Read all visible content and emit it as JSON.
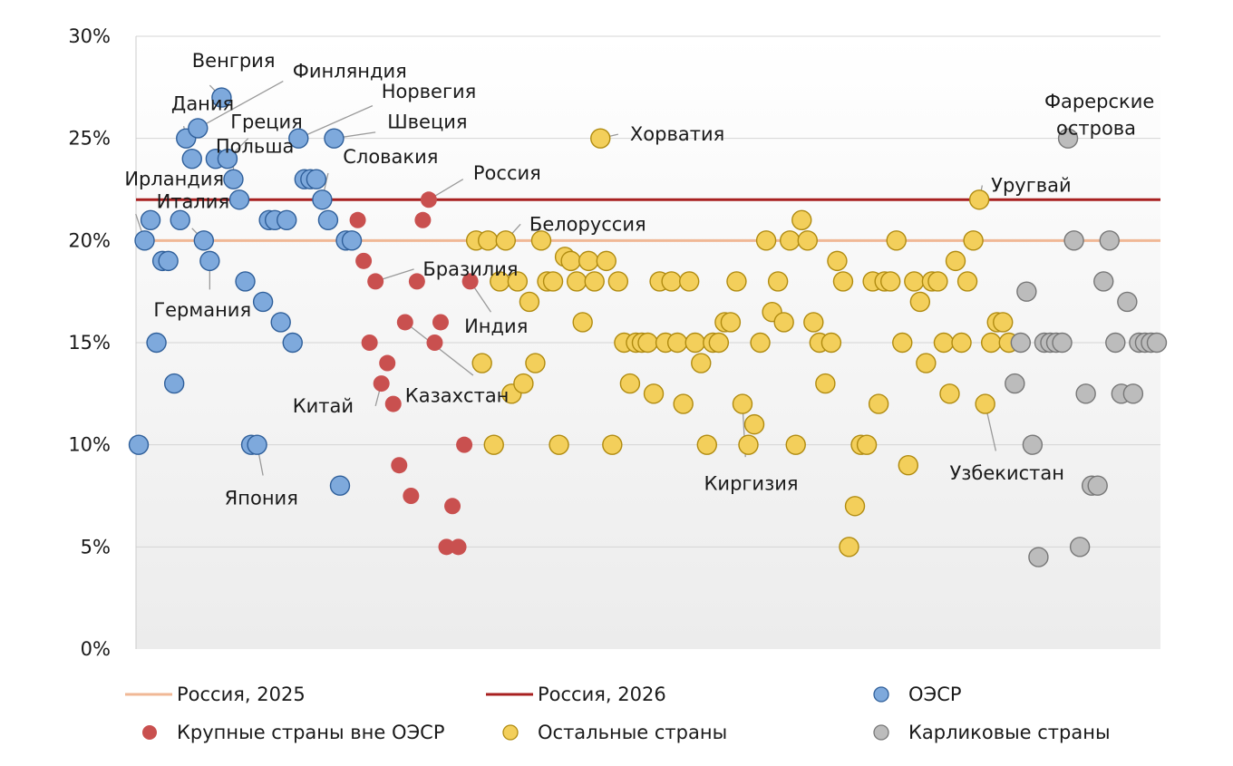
{
  "chart_data": {
    "type": "scatter",
    "ylim": [
      0,
      30
    ],
    "y_ticks": [
      "0%",
      "5%",
      "10%",
      "15%",
      "20%",
      "25%",
      "30%"
    ],
    "grid": true,
    "colors": {
      "oecd": "#7ea9dc",
      "oecd_edge": "#2f5f9a",
      "nonoecd": "#c9504f",
      "other": "#f3cf5b",
      "other_edge": "#b08b10",
      "dwarf": "#bcbcbc",
      "dwarf_edge": "#777777",
      "line2025": "#f0b896",
      "line2026": "#a82020"
    },
    "reference_lines": [
      {
        "name": "Россия, 2025",
        "value": 20
      },
      {
        "name": "Россия, 2026",
        "value": 22
      }
    ],
    "series": [
      {
        "name": "ОЭСР",
        "key": "oecd",
        "points": [
          [
            1,
            10
          ],
          [
            2,
            20
          ],
          [
            3,
            21
          ],
          [
            4,
            15
          ],
          [
            5,
            19
          ],
          [
            6,
            19
          ],
          [
            7,
            13
          ],
          [
            8,
            21
          ],
          [
            9,
            25
          ],
          [
            10,
            24
          ],
          [
            11,
            25.5
          ],
          [
            12,
            20
          ],
          [
            13,
            19
          ],
          [
            14,
            24
          ],
          [
            15,
            27
          ],
          [
            16,
            24
          ],
          [
            17,
            23
          ],
          [
            18,
            22
          ],
          [
            19,
            18
          ],
          [
            20,
            10
          ],
          [
            21,
            10
          ],
          [
            22,
            17
          ],
          [
            23,
            21
          ],
          [
            24,
            21
          ],
          [
            25,
            16
          ],
          [
            26,
            21
          ],
          [
            27,
            15
          ],
          [
            28,
            25
          ],
          [
            29,
            23
          ],
          [
            30,
            23
          ],
          [
            31,
            23
          ],
          [
            32,
            22
          ],
          [
            33,
            21
          ],
          [
            34,
            25
          ],
          [
            35,
            8
          ],
          [
            36,
            20
          ],
          [
            37,
            20
          ]
        ]
      },
      {
        "name": "Крупные страны вне ОЭСР",
        "key": "nonoecd",
        "points": [
          [
            38,
            21
          ],
          [
            39,
            19
          ],
          [
            40,
            15
          ],
          [
            41,
            18
          ],
          [
            42,
            13
          ],
          [
            43,
            14
          ],
          [
            44,
            12
          ],
          [
            45,
            9
          ],
          [
            46,
            16
          ],
          [
            47,
            7.5
          ],
          [
            48,
            18
          ],
          [
            49,
            21
          ],
          [
            50,
            22
          ],
          [
            51,
            15
          ],
          [
            52,
            16
          ],
          [
            53,
            5
          ],
          [
            54,
            7
          ],
          [
            55,
            5
          ],
          [
            56,
            10
          ],
          [
            57,
            18
          ]
        ]
      },
      {
        "name": "Остальные страны",
        "key": "other",
        "points": [
          [
            58,
            20
          ],
          [
            59,
            14
          ],
          [
            60,
            20
          ],
          [
            61,
            10
          ],
          [
            62,
            18
          ],
          [
            63,
            20
          ],
          [
            64,
            12.5
          ],
          [
            65,
            18
          ],
          [
            66,
            13
          ],
          [
            67,
            17
          ],
          [
            68,
            14
          ],
          [
            69,
            20
          ],
          [
            70,
            18
          ],
          [
            71,
            18
          ],
          [
            72,
            10
          ],
          [
            73,
            19.2
          ],
          [
            74,
            19
          ],
          [
            75,
            18
          ],
          [
            76,
            16
          ],
          [
            77,
            19
          ],
          [
            78,
            18
          ],
          [
            79,
            25
          ],
          [
            80,
            19
          ],
          [
            81,
            10
          ],
          [
            82,
            18
          ],
          [
            83,
            15
          ],
          [
            84,
            13
          ],
          [
            85,
            15
          ],
          [
            86,
            15
          ],
          [
            87,
            15
          ],
          [
            88,
            12.5
          ],
          [
            89,
            18
          ],
          [
            90,
            15
          ],
          [
            91,
            18
          ],
          [
            92,
            15
          ],
          [
            93,
            12
          ],
          [
            94,
            18
          ],
          [
            95,
            15
          ],
          [
            96,
            14
          ],
          [
            97,
            10
          ],
          [
            98,
            15
          ],
          [
            99,
            15
          ],
          [
            100,
            16
          ],
          [
            101,
            16
          ],
          [
            102,
            18
          ],
          [
            103,
            12
          ],
          [
            104,
            10
          ],
          [
            105,
            11
          ],
          [
            106,
            15
          ],
          [
            107,
            20
          ],
          [
            108,
            16.5
          ],
          [
            109,
            18
          ],
          [
            110,
            16
          ],
          [
            111,
            20
          ],
          [
            112,
            10
          ],
          [
            113,
            21
          ],
          [
            114,
            20
          ],
          [
            115,
            16
          ],
          [
            116,
            15
          ],
          [
            117,
            13
          ],
          [
            118,
            15
          ],
          [
            119,
            19
          ],
          [
            120,
            18
          ],
          [
            121,
            5
          ],
          [
            122,
            7
          ],
          [
            123,
            10
          ],
          [
            124,
            10
          ],
          [
            125,
            18
          ],
          [
            126,
            12
          ],
          [
            127,
            18
          ],
          [
            128,
            18
          ],
          [
            129,
            20
          ],
          [
            130,
            15
          ],
          [
            131,
            9
          ],
          [
            132,
            18
          ],
          [
            133,
            17
          ],
          [
            134,
            14
          ],
          [
            135,
            18
          ],
          [
            136,
            18
          ],
          [
            137,
            15
          ],
          [
            138,
            12.5
          ],
          [
            139,
            19
          ],
          [
            140,
            15
          ],
          [
            141,
            18
          ],
          [
            142,
            20
          ],
          [
            143,
            22
          ],
          [
            144,
            12
          ],
          [
            145,
            15
          ],
          [
            146,
            16
          ],
          [
            147,
            16
          ],
          [
            148,
            15
          ]
        ]
      },
      {
        "name": "Карликовые страны",
        "key": "dwarf",
        "points": [
          [
            149,
            13
          ],
          [
            150,
            15
          ],
          [
            151,
            17.5
          ],
          [
            152,
            10
          ],
          [
            153,
            4.5
          ],
          [
            154,
            15
          ],
          [
            155,
            15
          ],
          [
            156,
            15
          ],
          [
            157,
            15
          ],
          [
            158,
            25
          ],
          [
            159,
            20
          ],
          [
            160,
            5
          ],
          [
            161,
            12.5
          ],
          [
            162,
            8
          ],
          [
            163,
            8
          ],
          [
            164,
            18
          ],
          [
            165,
            20
          ],
          [
            166,
            15
          ],
          [
            167,
            12.5
          ],
          [
            168,
            17
          ],
          [
            169,
            12.5
          ],
          [
            170,
            15
          ],
          [
            171,
            15
          ],
          [
            172,
            15
          ],
          [
            173,
            15
          ]
        ]
      }
    ],
    "annotations": [
      {
        "text": "Венгрия",
        "i": 15,
        "y": 27,
        "lx": 10,
        "ly": 28.8,
        "tx": 13,
        "ty": 27.6
      },
      {
        "text": "Дания",
        "i": 9,
        "y": 25,
        "lx": 6.5,
        "ly": 26.7,
        "tx": 8.6,
        "ty": 25.6
      },
      {
        "text": "Финляндия",
        "i": 11,
        "y": 25.5,
        "lx": 27,
        "ly": 28.3,
        "tx": 25.4,
        "ty": 27.8
      },
      {
        "text": "Норвегия",
        "i": 28,
        "y": 25,
        "lx": 42,
        "ly": 27.3,
        "tx": 40.5,
        "ty": 26.6
      },
      {
        "text": "Греция",
        "i": 16,
        "y": 24,
        "lx": 16.5,
        "ly": 25.8,
        "tx": 19.5,
        "ty": 25
      },
      {
        "text": "Швеция",
        "i": 34,
        "y": 25,
        "lx": 43,
        "ly": 25.8,
        "tx": 41,
        "ty": 25.3
      },
      {
        "text": "Польша",
        "i": 17,
        "y": 23,
        "lx": 14,
        "ly": 24.6,
        "tx": 17,
        "ty": 24
      },
      {
        "text": "Словакия",
        "i": 32,
        "y": 22,
        "lx": 35.5,
        "ly": 24.1,
        "tx": 33,
        "ty": 23.3
      },
      {
        "text": "Россия",
        "i": 50,
        "y": 22,
        "lx": 57.5,
        "ly": 23.3,
        "tx": 55.8,
        "ty": 23
      },
      {
        "text": "Ирландия",
        "i": 2,
        "y": 20,
        "lx": -1.4,
        "ly": 23,
        "tx": 0.5,
        "ty": 21.3
      },
      {
        "text": "Италия",
        "i": 12,
        "y": 20,
        "lx": 4,
        "ly": 21.9,
        "tx": 10,
        "ty": 20.6
      },
      {
        "text": "Белоруссия",
        "i": 63,
        "y": 20,
        "lx": 67,
        "ly": 20.8,
        "tx": 65.5,
        "ty": 20.8
      },
      {
        "text": "Бразилия",
        "i": 41,
        "y": 18,
        "lx": 49,
        "ly": 18.6,
        "tx": 47.5,
        "ty": 18.6
      },
      {
        "text": "Германия",
        "i": 13,
        "y": 19,
        "lx": 3.5,
        "ly": 16.6,
        "tx": 13,
        "ty": 17.6
      },
      {
        "text": "Индия",
        "i": 57,
        "y": 18,
        "lx": 56,
        "ly": 15.8,
        "tx": 60.5,
        "ty": 16.5
      },
      {
        "text": "Казахстан",
        "i": 46,
        "y": 16,
        "lx": 46,
        "ly": 12.4,
        "tx": 57.5,
        "ty": 13.4
      },
      {
        "text": "Китай",
        "i": 42,
        "y": 13,
        "lx": 27,
        "ly": 11.9,
        "tx": 41,
        "ty": 11.9
      },
      {
        "text": "Хорватия",
        "i": 79,
        "y": 25,
        "lx": 84,
        "ly": 25.2,
        "tx": 82,
        "ty": 25.2
      },
      {
        "text": "Фарерские",
        "i": 158,
        "y": 25,
        "lx": 154,
        "ly": 26.8,
        "tx": 158,
        "ty": 25.4
      },
      {
        "text": "острова",
        "i": 158,
        "y": 25,
        "lx": 156,
        "ly": 25.5,
        "tx": 0,
        "ty": 0,
        "nolead": true
      },
      {
        "text": "Уругвай",
        "i": 143,
        "y": 22,
        "lx": 145,
        "ly": 22.7,
        "tx": 143.5,
        "ty": 22.7
      },
      {
        "text": "Киргизия",
        "i": 103,
        "y": 12,
        "lx": 96.5,
        "ly": 8.1,
        "tx": 103.5,
        "ty": 9.4
      },
      {
        "text": "Узбекистан",
        "i": 144,
        "y": 12,
        "lx": 138,
        "ly": 8.6,
        "tx": 145.8,
        "ty": 9.7
      },
      {
        "text": "Япония",
        "i": 21,
        "y": 10,
        "lx": 15.5,
        "ly": 7.4,
        "tx": 22,
        "ty": 8.5
      }
    ],
    "legend": [
      {
        "name": "Россия, 2025",
        "kind": "line",
        "key": "line2025"
      },
      {
        "name": "Россия, 2026",
        "kind": "line",
        "key": "line2026"
      },
      {
        "name": "ОЭСР",
        "kind": "dot",
        "key": "oecd"
      },
      {
        "name": "Крупные страны вне ОЭСР",
        "kind": "dot",
        "key": "nonoecd"
      },
      {
        "name": "Остальные страны",
        "kind": "dot",
        "key": "other"
      },
      {
        "name": "Карликовые страны",
        "kind": "dot",
        "key": "dwarf"
      }
    ],
    "legend_position": "bottom"
  }
}
